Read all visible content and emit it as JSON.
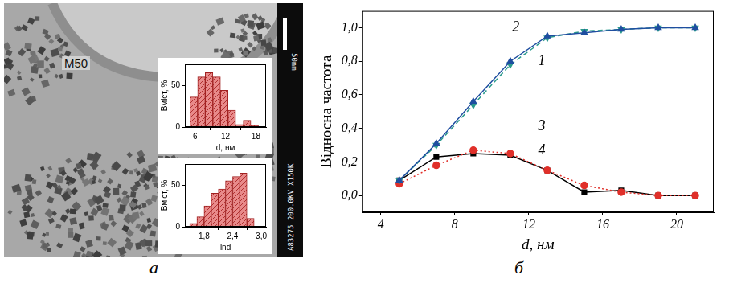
{
  "chart_data": [
    {
      "type": "histogram",
      "x_label": "d, нм",
      "y_label": "Вміст, %",
      "bins": [
        5,
        6.5,
        8,
        9.5,
        11,
        12.5,
        14,
        15.5,
        17,
        18.5
      ],
      "values": [
        36,
        60,
        65,
        60,
        44,
        20,
        3,
        8,
        2
      ],
      "color": "#e88a8a",
      "xlim": [
        4,
        20
      ],
      "xticks": [
        6,
        12,
        18
      ],
      "ylim": [
        0,
        75
      ],
      "yticks": [
        0,
        50
      ],
      "grid": false
    },
    {
      "type": "histogram",
      "x_label": "lnd",
      "y_label": "Вміст, %",
      "bins": [
        1.5,
        1.65,
        1.8,
        1.95,
        2.1,
        2.25,
        2.4,
        2.55,
        2.7,
        2.85
      ],
      "values": [
        4,
        12,
        25,
        40,
        45,
        55,
        60,
        64,
        10
      ],
      "color": "#e88a8a",
      "xlim": [
        1.4,
        3.1
      ],
      "xticks": [
        {
          "value": 1.8,
          "label": "1,8"
        },
        {
          "value": 2.4,
          "label": "2,4"
        },
        {
          "value": 3.0,
          "label": "3,0"
        }
      ],
      "ylim": [
        0,
        75
      ],
      "yticks": [
        0,
        50
      ],
      "grid": false
    },
    {
      "type": "line",
      "x_label": "d, нм",
      "y_label": "Відносна частота",
      "x": [
        5,
        7,
        9,
        11,
        13,
        15,
        17,
        19,
        21
      ],
      "series": [
        {
          "name": "1",
          "color": "#1f4ea0",
          "marker": "triangle",
          "line_style": "solid",
          "values": [
            0.09,
            0.31,
            0.56,
            0.8,
            0.95,
            0.97,
            0.99,
            1.0,
            1.0
          ]
        },
        {
          "name": "2",
          "color": "#2a9a8c",
          "marker": "triangle-down",
          "line_style": "dashed",
          "values": [
            0.09,
            0.3,
            0.54,
            0.78,
            0.94,
            0.98,
            0.99,
            1.0,
            1.0
          ]
        },
        {
          "name": "3",
          "color": "#e0302a",
          "marker": "circle",
          "line_style": "dotted",
          "values": [
            0.07,
            0.18,
            0.27,
            0.25,
            0.15,
            0.06,
            0.02,
            0.0,
            0.0
          ]
        },
        {
          "name": "4",
          "color": "#000000",
          "marker": "square",
          "line_style": "solid",
          "values": [
            0.09,
            0.23,
            0.25,
            0.24,
            0.15,
            0.02,
            0.03,
            0.0,
            0.0
          ]
        }
      ],
      "xlim": [
        3,
        22
      ],
      "xticks": [
        4,
        8,
        12,
        16,
        20
      ],
      "ylim": [
        -0.1,
        1.1
      ],
      "yticks": [
        {
          "value": 0,
          "label": "0,0"
        },
        {
          "value": 0.2,
          "label": "0,2"
        },
        {
          "value": 0.4,
          "label": "0,4"
        },
        {
          "value": 0.6,
          "label": "0,6"
        },
        {
          "value": 0.8,
          "label": "0,8"
        },
        {
          "value": 1.0,
          "label": "1,0"
        }
      ],
      "grid": false
    }
  ],
  "micrograph": {
    "label": "M50",
    "caption": "A83275 200.0KV X150K",
    "scale_bar": "50nm"
  },
  "panel_letters": [
    "a",
    "б"
  ]
}
